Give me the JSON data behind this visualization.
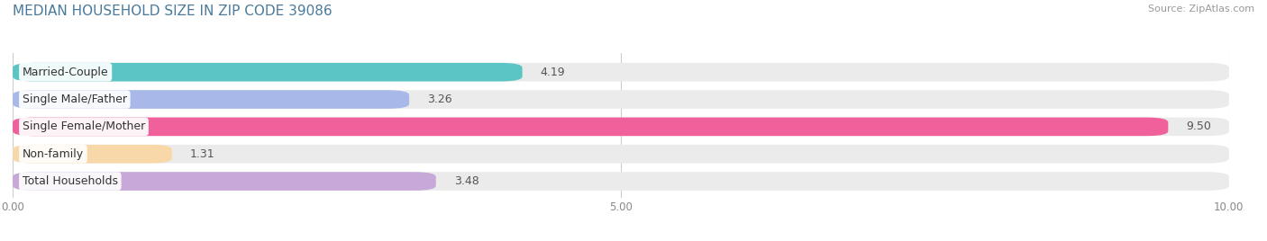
{
  "title": "MEDIAN HOUSEHOLD SIZE IN ZIP CODE 39086",
  "source": "Source: ZipAtlas.com",
  "categories": [
    "Married-Couple",
    "Single Male/Father",
    "Single Female/Mother",
    "Non-family",
    "Total Households"
  ],
  "values": [
    4.19,
    3.26,
    9.5,
    1.31,
    3.48
  ],
  "bar_colors": [
    "#5BC4C4",
    "#A8B8E8",
    "#F0609A",
    "#F8D8A8",
    "#C8A8D8"
  ],
  "bar_bg_color": "#EBEBEB",
  "xlim": [
    0,
    10.0
  ],
  "xtick_labels": [
    "0.00",
    "5.00",
    "10.00"
  ],
  "xtick_values": [
    0.0,
    5.0,
    10.0
  ],
  "title_fontsize": 11,
  "source_fontsize": 8,
  "label_fontsize": 9,
  "value_fontsize": 9,
  "background_color": "#FFFFFF",
  "bar_height": 0.68,
  "label_box_color": "#FFFFFF"
}
